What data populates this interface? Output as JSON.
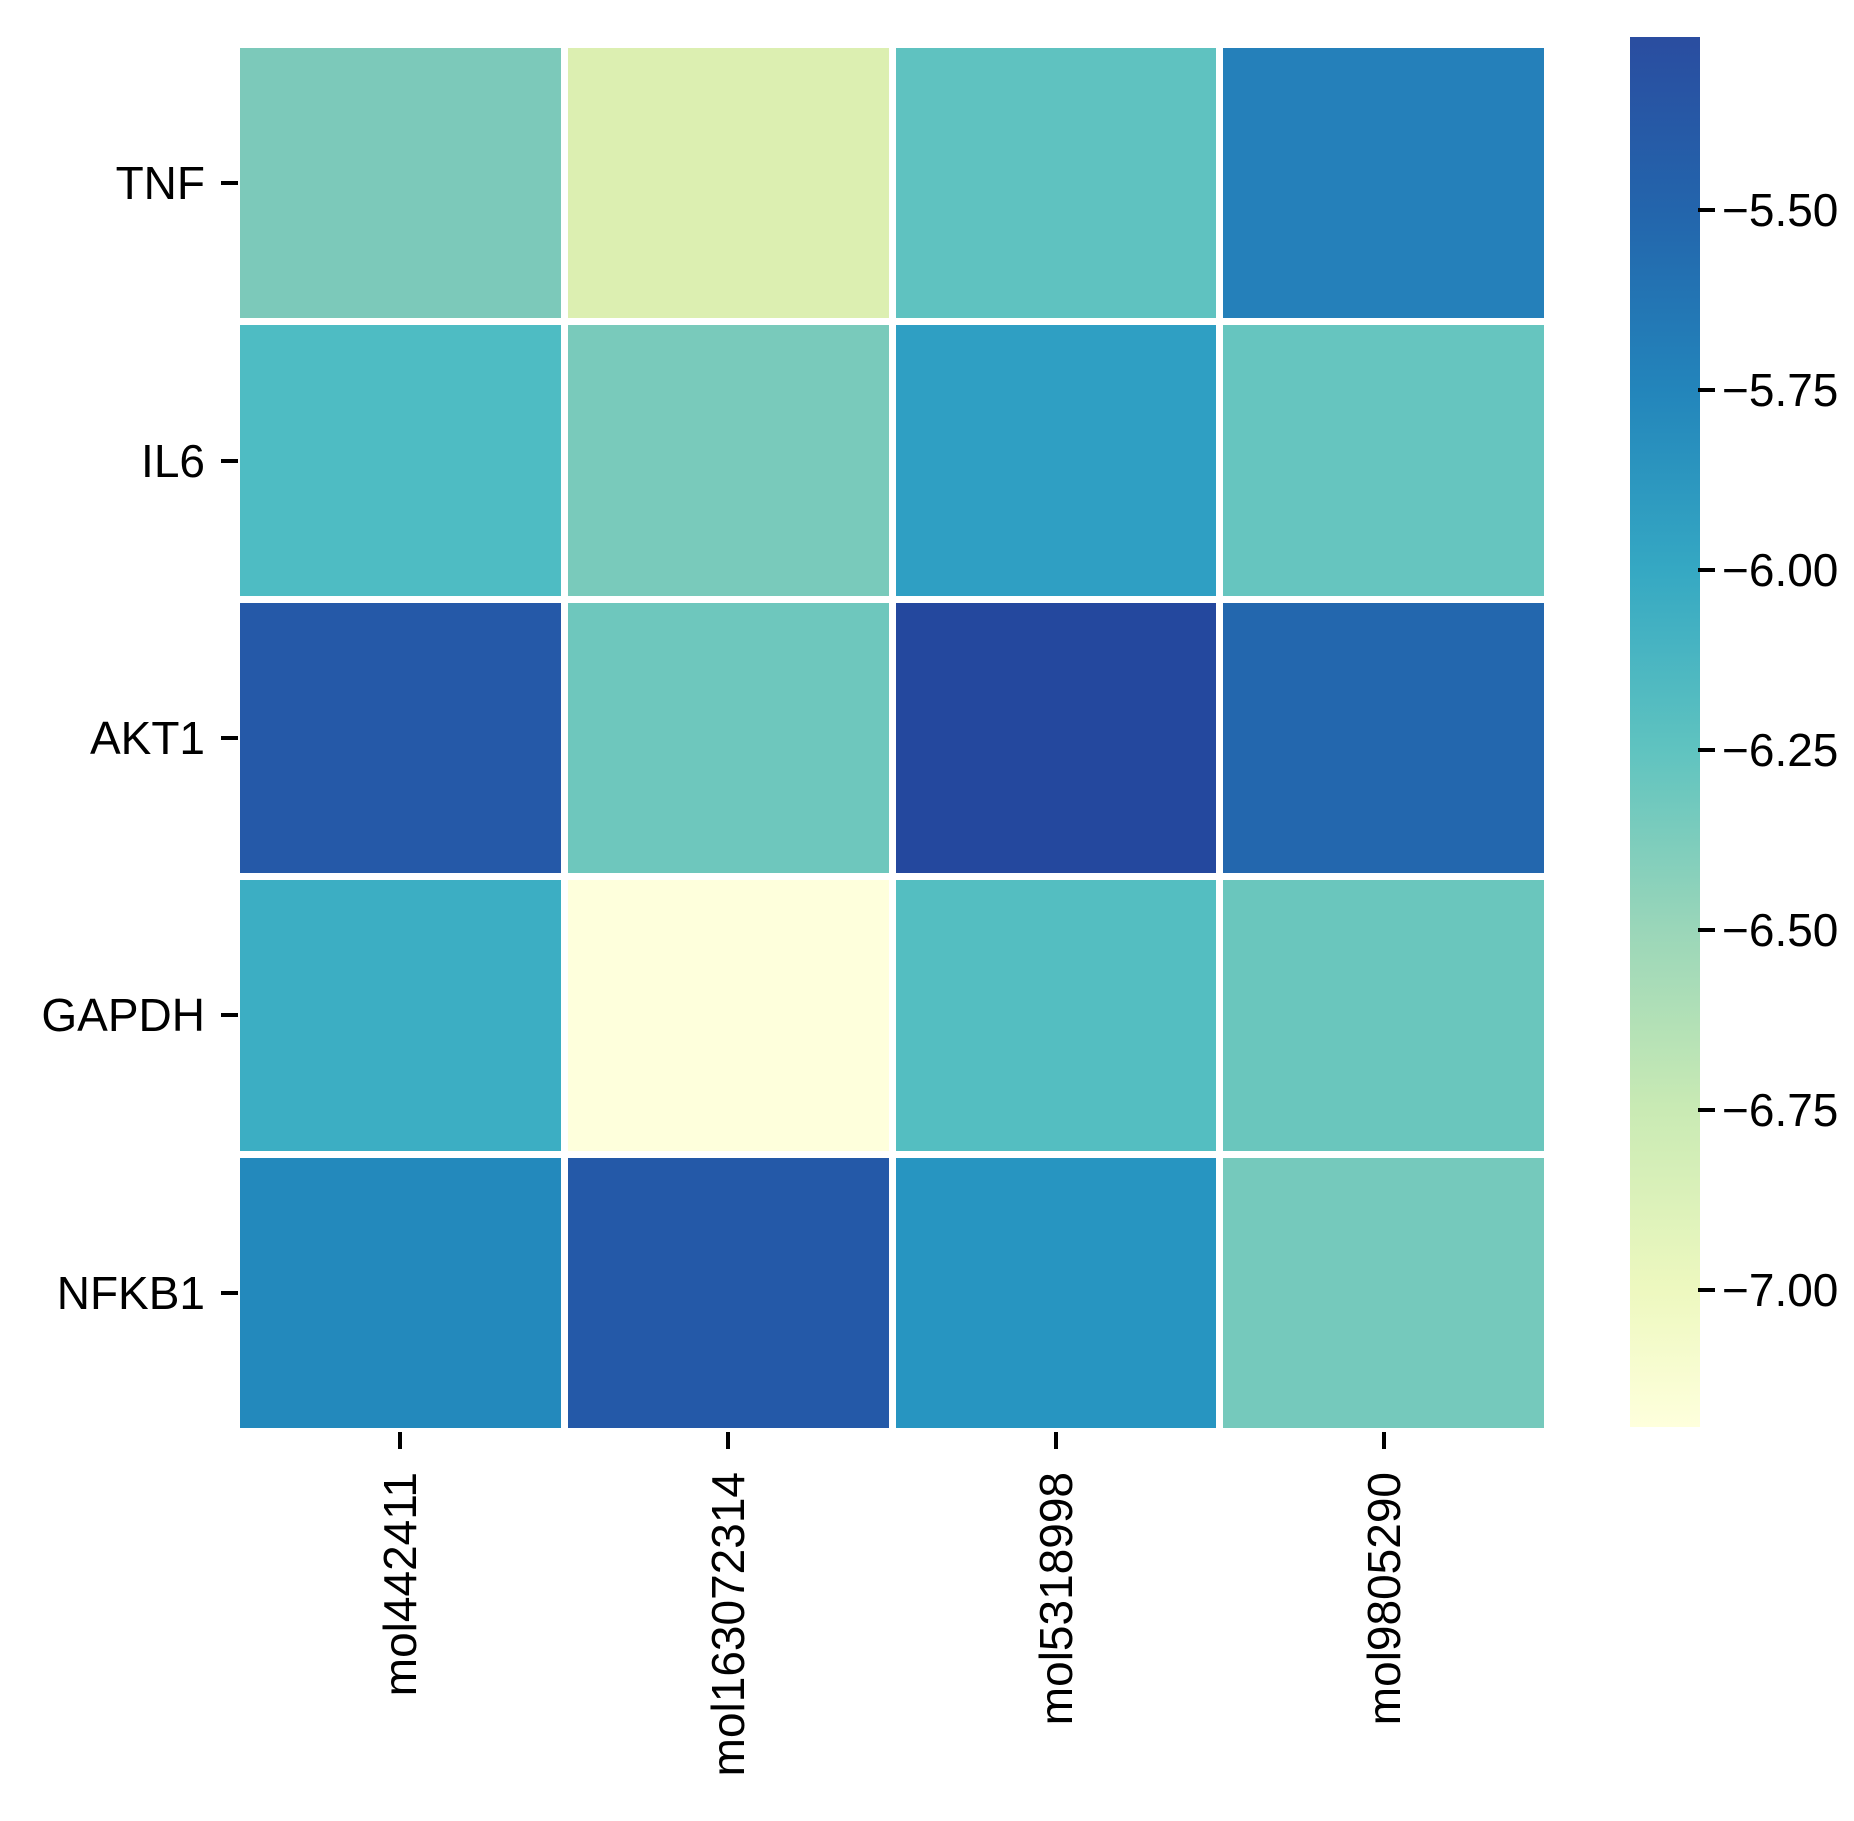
{
  "chart_data": {
    "type": "heatmap",
    "title": "",
    "rows": [
      "TNF",
      "IL6",
      "AKT1",
      "GAPDH",
      "NFKB1"
    ],
    "columns": [
      "mol442411",
      "mol163072314",
      "mol5318998",
      "mol9805290"
    ],
    "values": [
      [
        -6.38,
        -6.84,
        -6.22,
        -5.72
      ],
      [
        -6.15,
        -6.36,
        -5.92,
        -6.26
      ],
      [
        -5.4,
        -6.3,
        -5.27,
        -5.51
      ],
      [
        -6.03,
        -7.19,
        -6.17,
        -6.28
      ],
      [
        -5.76,
        -5.42,
        -5.84,
        -6.34
      ]
    ],
    "cell_colors": [
      [
        "#7cc9ba",
        "#dcefb1",
        "#5fc2c0",
        "#2580ba"
      ],
      [
        "#4ebcc3",
        "#79cabb",
        "#2f9fc3",
        "#66c5bf"
      ],
      [
        "#2559a8",
        "#6ec7bd",
        "#24489e",
        "#2367ae"
      ],
      [
        "#3caec3",
        "#feffdc",
        "#54bec1",
        "#6ac6bd"
      ],
      [
        "#2389bc",
        "#2459a8",
        "#2795c1",
        "#75c9bc"
      ]
    ],
    "colormap": "YlGnBu reversed (dark blue = high, pale yellow = low)",
    "grid": "white gaps between cells",
    "legend_position": "right colorbar",
    "colorbar": {
      "vmax": -5.26,
      "vmin": -7.19,
      "tick_values": [
        -5.5,
        -5.75,
        -6.0,
        -6.25,
        -6.5,
        -6.75,
        -7.0
      ],
      "tick_labels": [
        "−5.50",
        "−5.75",
        "−6.00",
        "−6.25",
        "−6.50",
        "−6.75",
        "−7.00"
      ],
      "gradient_top_to_bottom": [
        {
          "stop": 0.0,
          "color": "#2a4da0"
        },
        {
          "stop": 0.125,
          "color": "#2365ac"
        },
        {
          "stop": 0.254,
          "color": "#2385bb"
        },
        {
          "stop": 0.383,
          "color": "#35a8c3"
        },
        {
          "stop": 0.512,
          "color": "#5fc3c0"
        },
        {
          "stop": 0.642,
          "color": "#9ad6b9"
        },
        {
          "stop": 0.771,
          "color": "#c9eab4"
        },
        {
          "stop": 0.9,
          "color": "#edf8bf"
        },
        {
          "stop": 1.0,
          "color": "#feffdc"
        }
      ]
    }
  }
}
